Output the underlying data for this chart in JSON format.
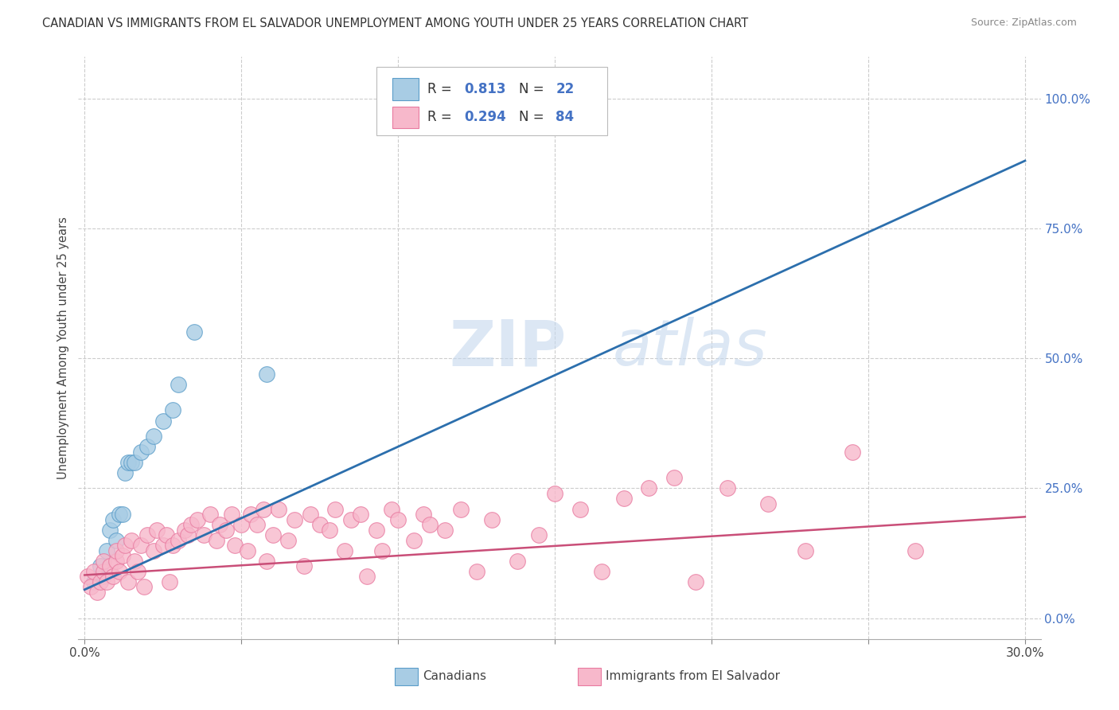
{
  "title": "CANADIAN VS IMMIGRANTS FROM EL SALVADOR UNEMPLOYMENT AMONG YOUTH UNDER 25 YEARS CORRELATION CHART",
  "source": "Source: ZipAtlas.com",
  "ylabel": "Unemployment Among Youth under 25 years",
  "xlim": [
    -0.002,
    0.305
  ],
  "ylim": [
    -0.04,
    1.08
  ],
  "xticks": [
    0.0,
    0.05,
    0.1,
    0.15,
    0.2,
    0.25,
    0.3
  ],
  "xticklabels": [
    "0.0%",
    "",
    "",
    "",
    "",
    "",
    "30.0%"
  ],
  "ytick_positions": [
    0.0,
    0.25,
    0.5,
    0.75,
    1.0
  ],
  "ytick_labels_right": [
    "0.0%",
    "25.0%",
    "50.0%",
    "75.0%",
    "100.0%"
  ],
  "blue_R": "0.813",
  "blue_N": "22",
  "pink_R": "0.294",
  "pink_N": "84",
  "blue_color": "#a8cce4",
  "blue_edge": "#5b9dc9",
  "pink_color": "#f7b8cb",
  "pink_edge": "#e87aa0",
  "blue_line_color": "#2c6fad",
  "pink_line_color": "#c94e78",
  "background_color": "#ffffff",
  "grid_color": "#cccccc",
  "watermark_zip": "ZIP",
  "watermark_atlas": "atlas",
  "legend_label_blue": "Canadians",
  "legend_label_pink": "Immigrants from El Salvador",
  "blue_line_x0": 0.0,
  "blue_line_y0": 0.055,
  "blue_line_x1": 0.3,
  "blue_line_y1": 0.88,
  "pink_line_x0": 0.0,
  "pink_line_y0": 0.083,
  "pink_line_x1": 0.3,
  "pink_line_y1": 0.195,
  "blue_x": [
    0.003,
    0.005,
    0.006,
    0.007,
    0.008,
    0.009,
    0.01,
    0.011,
    0.012,
    0.013,
    0.014,
    0.015,
    0.016,
    0.018,
    0.02,
    0.022,
    0.025,
    0.028,
    0.03,
    0.035,
    0.058,
    0.15
  ],
  "blue_y": [
    0.07,
    0.1,
    0.08,
    0.13,
    0.17,
    0.19,
    0.15,
    0.2,
    0.2,
    0.28,
    0.3,
    0.3,
    0.3,
    0.32,
    0.33,
    0.35,
    0.38,
    0.4,
    0.45,
    0.55,
    0.47,
    1.0
  ],
  "pink_x": [
    0.001,
    0.002,
    0.003,
    0.004,
    0.005,
    0.006,
    0.006,
    0.007,
    0.008,
    0.009,
    0.01,
    0.01,
    0.011,
    0.012,
    0.013,
    0.014,
    0.015,
    0.016,
    0.017,
    0.018,
    0.019,
    0.02,
    0.022,
    0.023,
    0.025,
    0.026,
    0.027,
    0.028,
    0.03,
    0.032,
    0.033,
    0.034,
    0.036,
    0.038,
    0.04,
    0.042,
    0.043,
    0.045,
    0.047,
    0.048,
    0.05,
    0.052,
    0.053,
    0.055,
    0.057,
    0.058,
    0.06,
    0.062,
    0.065,
    0.067,
    0.07,
    0.072,
    0.075,
    0.078,
    0.08,
    0.083,
    0.085,
    0.088,
    0.09,
    0.093,
    0.095,
    0.098,
    0.1,
    0.105,
    0.108,
    0.11,
    0.115,
    0.12,
    0.125,
    0.13,
    0.138,
    0.145,
    0.15,
    0.158,
    0.165,
    0.172,
    0.18,
    0.188,
    0.195,
    0.205,
    0.218,
    0.23,
    0.245,
    0.265
  ],
  "pink_y": [
    0.08,
    0.06,
    0.09,
    0.05,
    0.07,
    0.09,
    0.11,
    0.07,
    0.1,
    0.08,
    0.11,
    0.13,
    0.09,
    0.12,
    0.14,
    0.07,
    0.15,
    0.11,
    0.09,
    0.14,
    0.06,
    0.16,
    0.13,
    0.17,
    0.14,
    0.16,
    0.07,
    0.14,
    0.15,
    0.17,
    0.16,
    0.18,
    0.19,
    0.16,
    0.2,
    0.15,
    0.18,
    0.17,
    0.2,
    0.14,
    0.18,
    0.13,
    0.2,
    0.18,
    0.21,
    0.11,
    0.16,
    0.21,
    0.15,
    0.19,
    0.1,
    0.2,
    0.18,
    0.17,
    0.21,
    0.13,
    0.19,
    0.2,
    0.08,
    0.17,
    0.13,
    0.21,
    0.19,
    0.15,
    0.2,
    0.18,
    0.17,
    0.21,
    0.09,
    0.19,
    0.11,
    0.16,
    0.24,
    0.21,
    0.09,
    0.23,
    0.25,
    0.27,
    0.07,
    0.25,
    0.22,
    0.13,
    0.32,
    0.13
  ]
}
